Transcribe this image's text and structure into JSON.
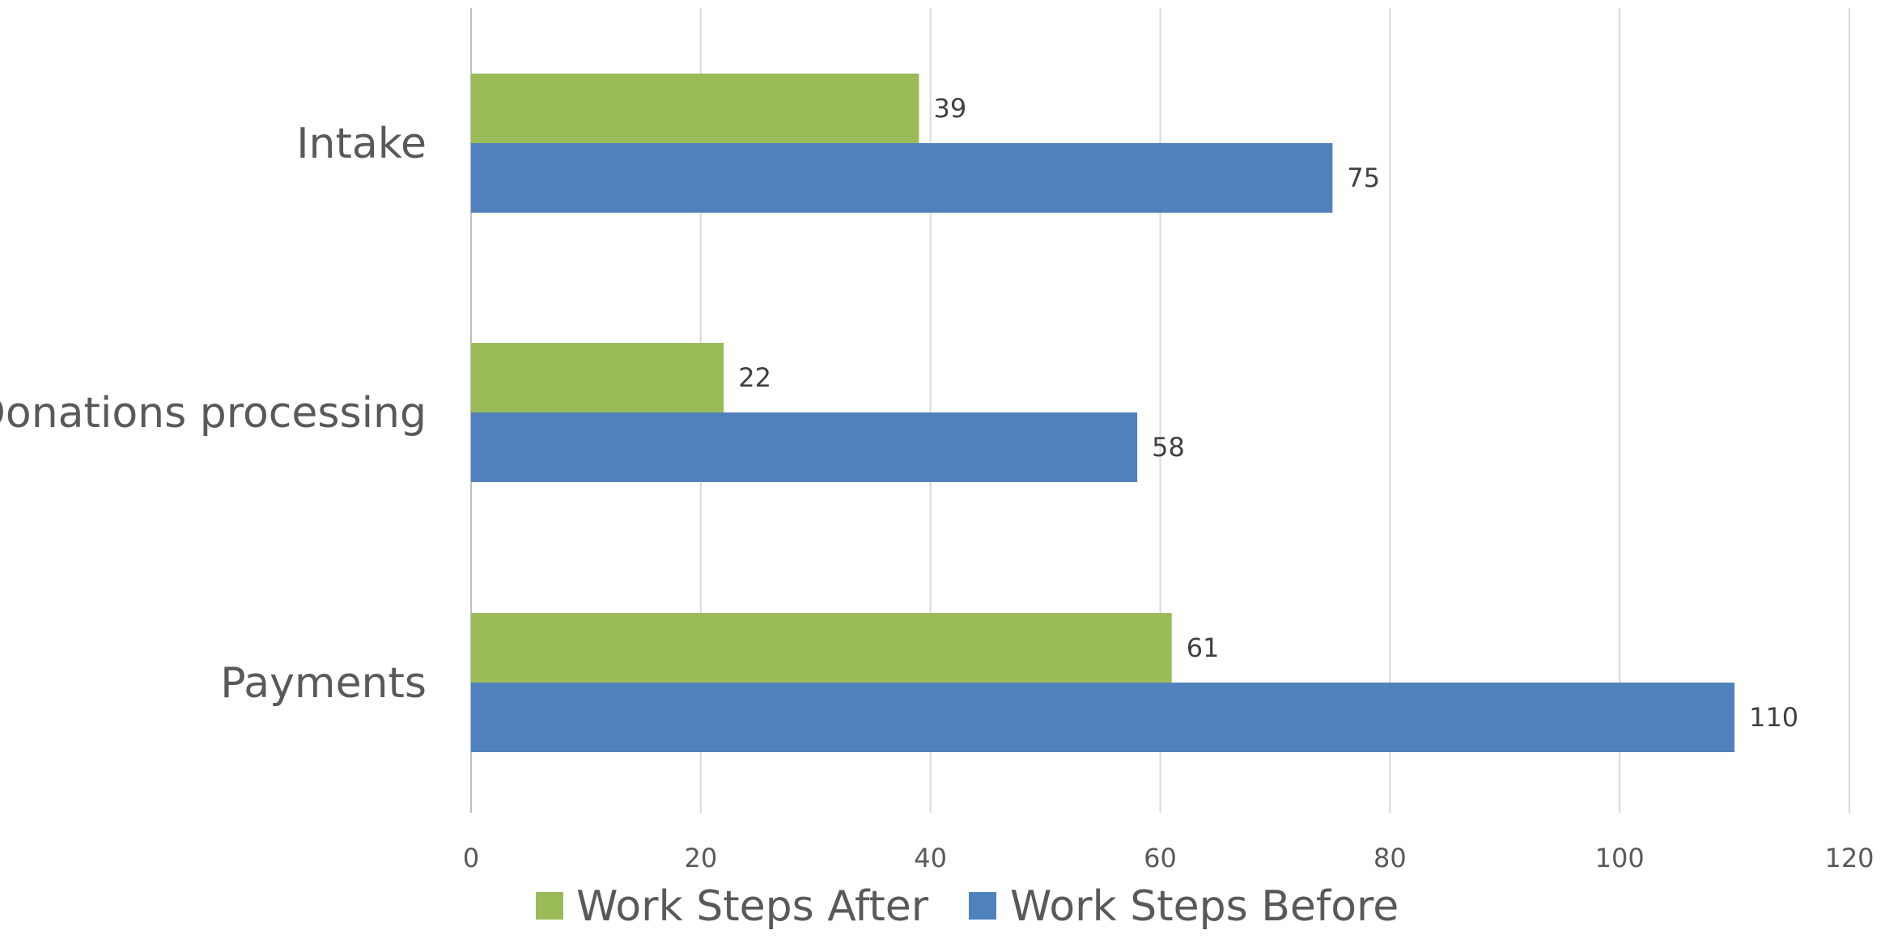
{
  "chart_data": {
    "type": "bar",
    "orientation": "horizontal",
    "categories": [
      "Intake",
      "Donations processing",
      "Payments"
    ],
    "series": [
      {
        "name": "Work Steps After",
        "values": [
          39,
          22,
          61
        ],
        "color": "#9bbb59"
      },
      {
        "name": "Work Steps Before",
        "values": [
          75,
          58,
          110
        ],
        "color": "#4f81bd"
      }
    ],
    "xlim": [
      0,
      120
    ],
    "x_ticks": [
      0,
      20,
      40,
      60,
      80,
      100,
      120
    ],
    "title": "",
    "xlabel": "",
    "ylabel": "",
    "grid": "vertical",
    "legend_position": "bottom",
    "data_labels": true
  }
}
